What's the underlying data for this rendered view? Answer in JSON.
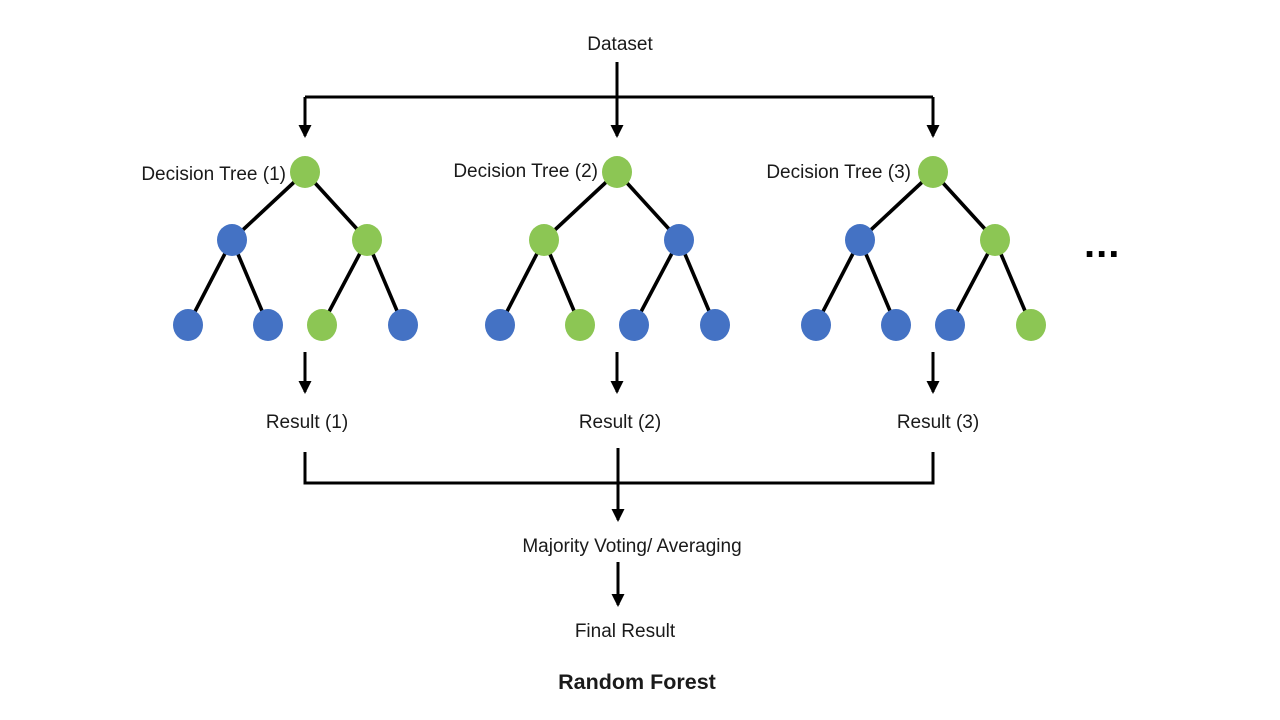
{
  "diagram_title": "Random Forest",
  "labels": {
    "dataset": "Dataset",
    "majority_voting": "Majority Voting/ Averaging",
    "final_result": "Final Result",
    "ellipsis": "..."
  },
  "colors": {
    "node_green": "#8CC654",
    "node_blue": "#4472C4",
    "line": "#000000"
  },
  "trees": [
    {
      "label": "Decision Tree (1)",
      "result": "Result (1)",
      "nodes": [
        "green",
        "blue",
        "green",
        "blue",
        "blue",
        "green",
        "blue"
      ]
    },
    {
      "label": "Decision Tree (2)",
      "result": "Result (2)",
      "nodes": [
        "green",
        "green",
        "blue",
        "blue",
        "green",
        "blue",
        "blue"
      ]
    },
    {
      "label": "Decision Tree (3)",
      "result": "Result (3)",
      "nodes": [
        "green",
        "blue",
        "green",
        "blue",
        "blue",
        "blue",
        "green"
      ]
    }
  ],
  "node_roles": [
    "root",
    "internal-left",
    "internal-right",
    "leaf-1",
    "leaf-2",
    "leaf-3",
    "leaf-4"
  ]
}
